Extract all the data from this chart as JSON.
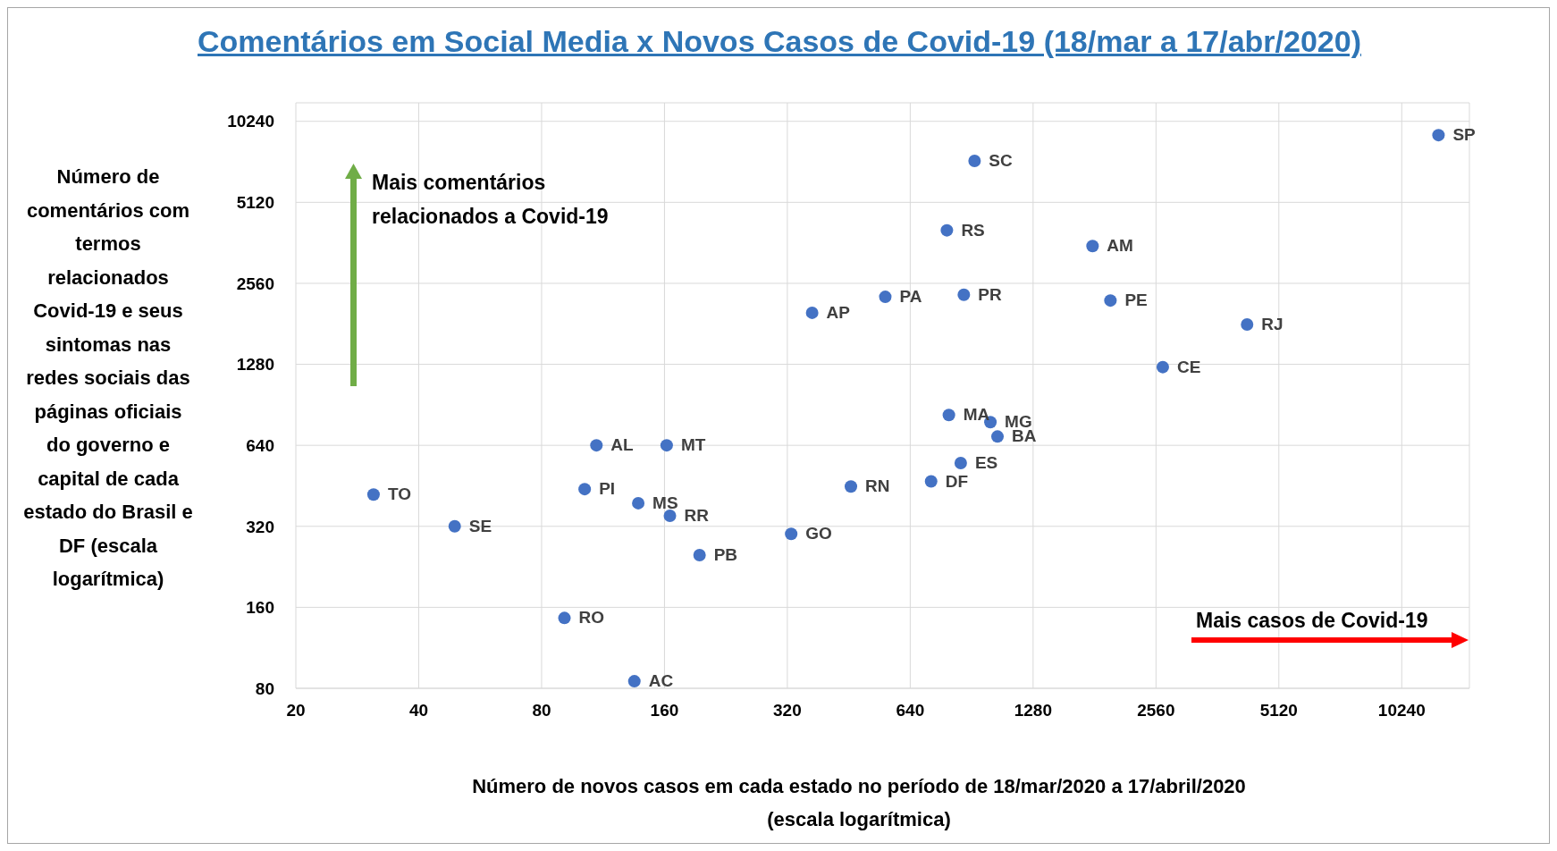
{
  "chart_data": {
    "type": "scatter",
    "title": "Comentários em Social Media x Novos Casos de Covid-19 (18/mar a 17/abr/2020)",
    "xlabel": "Número de novos casos em cada estado no período de 18/mar/2020 a 17/abril/2020 (escala logarítmica)",
    "ylabel": "Número de comentários com termos relacionados Covid-19 e seus sintomas nas redes sociais das páginas oficiais do governo e capital de cada estado do Brasil e DF (escala logarítmica)",
    "annotations": [
      "Mais comentários relacionados a Covid-19",
      "Mais casos de Covid-19"
    ],
    "x": [
      12600,
      920,
      787,
      1790,
      556,
      866,
      1980,
      368,
      4280,
      2660,
      796,
      1006,
      1047,
      109,
      162,
      851,
      720,
      458,
      102,
      31,
      138,
      165,
      49,
      327,
      195,
      91,
      135
    ],
    "values": [
      9100,
      7300,
      4030,
      3520,
      2280,
      2320,
      2210,
      1990,
      1800,
      1250,
      830,
      780,
      690,
      640,
      640,
      550,
      470,
      450,
      440,
      420,
      390,
      350,
      320,
      300,
      250,
      146,
      85
    ],
    "value_labels": [
      "SP",
      "SC",
      "RS",
      "AM",
      "PA",
      "PR",
      "PE",
      "AP",
      "RJ",
      "CE",
      "MA",
      "MG",
      "BA",
      "AL",
      "MT",
      "ES",
      "DF",
      "RN",
      "PI",
      "TO",
      "MS",
      "RR",
      "SE",
      "GO",
      "PB",
      "RO",
      "AC"
    ],
    "color": "#4472c4",
    "marker": "circle",
    "log": "xy",
    "grid": true,
    "legend": false,
    "xlim": [
      20,
      15000
    ],
    "xticks": [
      20,
      40,
      80,
      160,
      320,
      640,
      1280,
      2560,
      5120,
      10240
    ],
    "ylim": [
      80,
      12000
    ],
    "yticks": [
      80,
      160,
      320,
      640,
      1280,
      2560,
      5120,
      10240
    ]
  }
}
